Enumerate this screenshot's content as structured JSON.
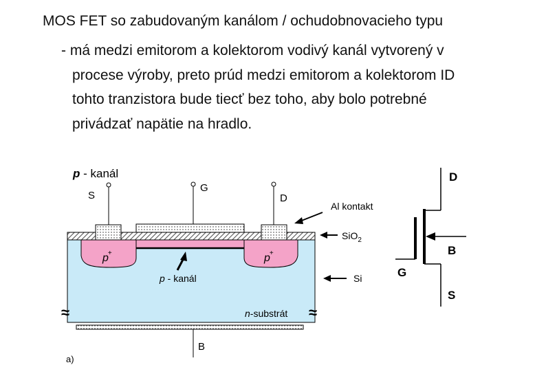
{
  "heading": "MOS FET so zabudovaným kanálom / ochudobnovacieho typu",
  "bullet_lines": [
    "- má medzi emitorom a kolektorom vodivý kanál vytvorený v",
    "procese výroby, preto prúd medzi emitorom a kolektorom ID",
    "tohto tranzistora bude tiecť bez toho, aby bolo potrebné",
    "privádzať napätie na hradlo."
  ],
  "diagram": {
    "title_italic": "p",
    "title_rest": " - kanál",
    "terminal_s": "S",
    "terminal_g": "G",
    "terminal_d": "D",
    "terminal_b": "B",
    "p_plus": "p",
    "plus_sign": "+",
    "channel_italic": "p",
    "channel_rest": " - kanál",
    "substrate_italic": "n",
    "substrate_rest": "-substrát",
    "wave": "≈",
    "callout_al": "Al kontakt",
    "callout_sio2_main": "SiO",
    "callout_sio2_sub": "2",
    "callout_si": "Si",
    "footnote": "a)",
    "colors": {
      "substrate": "#c9eaf8",
      "p_region": "#f4a3c8",
      "oxide_hatch": "#555555",
      "line": "#000000"
    }
  },
  "symbol": {
    "label_d": "D",
    "label_g": "G",
    "label_b": "B",
    "label_s": "S"
  }
}
